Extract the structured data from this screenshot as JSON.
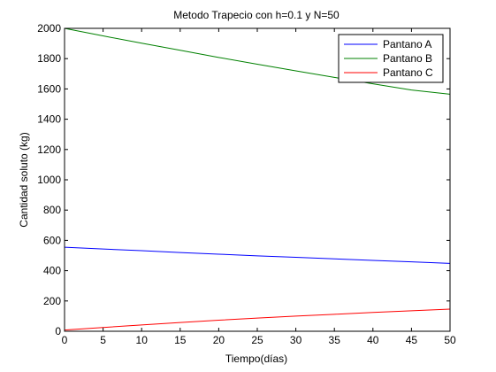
{
  "chart_data": {
    "type": "line",
    "title": "Metodo Trapecio con h=0.1 y N=50",
    "xlabel": "Tiempo(días)",
    "ylabel": "Cantidad soluto (kg)",
    "xlim": [
      0,
      50
    ],
    "ylim": [
      0,
      2000
    ],
    "xticks": [
      0,
      5,
      10,
      15,
      20,
      25,
      30,
      35,
      40,
      45,
      50
    ],
    "yticks": [
      0,
      200,
      400,
      600,
      800,
      1000,
      1200,
      1400,
      1600,
      1800,
      2000
    ],
    "grid": false,
    "legend_position": "top-right",
    "x": [
      0,
      5,
      10,
      15,
      20,
      25,
      30,
      35,
      40,
      45,
      50
    ],
    "series": [
      {
        "name": "Pantano A",
        "color": "#0000ff",
        "values": [
          555,
          543,
          532,
          520,
          509,
          498,
          488,
          478,
          468,
          458,
          448
        ]
      },
      {
        "name": "Pantano B",
        "color": "#008000",
        "values": [
          2000,
          1950,
          1902,
          1855,
          1808,
          1763,
          1719,
          1676,
          1634,
          1593,
          1565
        ]
      },
      {
        "name": "Pantano C",
        "color": "#ff0000",
        "values": [
          8,
          25,
          42,
          58,
          73,
          87,
          100,
          112,
          124,
          135,
          146
        ]
      }
    ]
  }
}
